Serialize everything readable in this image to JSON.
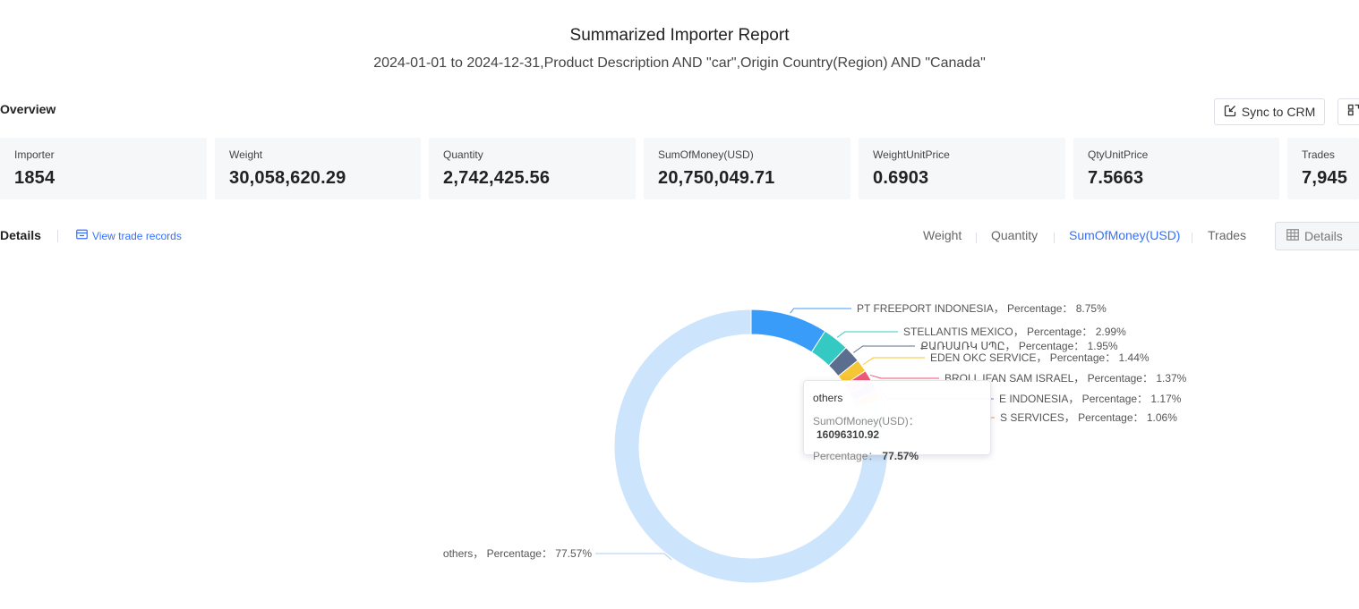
{
  "report": {
    "title": "Summarized Importer Report",
    "subtitle": "2024-01-01 to 2024-12-31,Product Description AND \"car\",Origin Country(Region) AND \"Canada\""
  },
  "overview": {
    "label": "Overview",
    "sync_label": "Sync to CRM",
    "cards": [
      {
        "label": "Importer",
        "value": "1854"
      },
      {
        "label": "Weight",
        "value": "30,058,620.29"
      },
      {
        "label": "Quantity",
        "value": "2,742,425.56"
      },
      {
        "label": "SumOfMoney(USD)",
        "value": "20,750,049.71"
      },
      {
        "label": "WeightUnitPrice",
        "value": "0.6903"
      },
      {
        "label": "QtyUnitPrice",
        "value": "7.5663"
      },
      {
        "label": "Trades",
        "value": "7,945"
      }
    ]
  },
  "details": {
    "label": "Details",
    "view_link": "View trade records",
    "tabs": [
      {
        "label": "Weight",
        "active": false
      },
      {
        "label": "Quantity",
        "active": false
      },
      {
        "label": "SumOfMoney(USD)",
        "active": true
      },
      {
        "label": "Trades",
        "active": false
      }
    ],
    "details_button": "Details"
  },
  "colors": {
    "accent": "#3370ff",
    "card_bg": "#f6f7f9"
  },
  "chart_data": {
    "type": "pie",
    "variant": "donut",
    "metric": "SumOfMoney(USD)",
    "label_prefix": "Percentage：",
    "slices": [
      {
        "name": "PT FREEPORT INDONESIA",
        "percentage": 8.75,
        "color": "#3a9cf9"
      },
      {
        "name": "STELLANTIS MEXICO",
        "percentage": 2.99,
        "color": "#35c9c4"
      },
      {
        "name": "ՔԱՌՍԱՌԿ ՍՊԸ",
        "percentage": 1.95,
        "color": "#5b6e8f"
      },
      {
        "name": "EDEN OKC SERVICE",
        "percentage": 1.44,
        "color": "#f7c634"
      },
      {
        "name": "BROLL IFAN SAM ISRAEL",
        "percentage": 1.37,
        "color": "#f05a7a"
      },
      {
        "name": "E INDONESIA",
        "percentage": 1.17,
        "color": "#8e6cf0"
      },
      {
        "name": "S SERVICES",
        "percentage": 1.06,
        "color": "#f39a4a"
      },
      {
        "name": "others",
        "percentage": 77.57,
        "color": "#cce4fc"
      }
    ],
    "tooltip": {
      "name": "others",
      "metric_label": "SumOfMoney(USD)：",
      "metric_value": "16096310.92",
      "percentage_label": "Percentage：",
      "percentage_value": "77.57%"
    }
  }
}
